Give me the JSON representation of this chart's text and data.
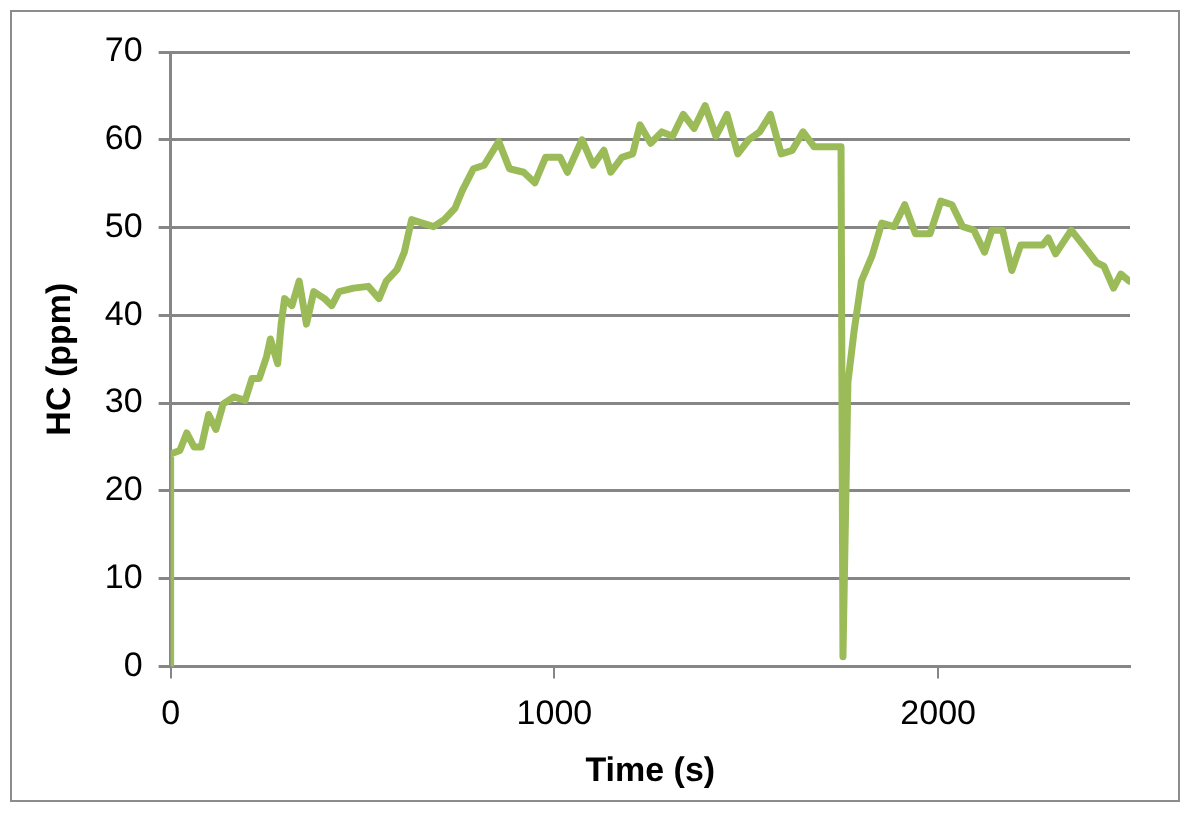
{
  "chart_data": {
    "type": "line",
    "xlabel": "Time (s)",
    "ylabel": "HC (ppm)",
    "xlim": [
      0,
      2500
    ],
    "xticks": [
      0,
      1000,
      2000
    ],
    "ylim": [
      0,
      70
    ],
    "yticks": [
      0,
      10,
      20,
      30,
      40,
      50,
      60,
      70
    ],
    "grid": "y",
    "legend": false,
    "marker": "none",
    "line_style": "solid",
    "x": [
      0,
      0,
      24,
      42,
      61,
      80,
      99,
      118,
      137,
      165,
      194,
      212,
      231,
      250,
      260,
      279,
      288,
      297,
      316,
      335,
      354,
      373,
      401,
      420,
      439,
      477,
      515,
      543,
      562,
      590,
      609,
      628,
      656,
      685,
      713,
      741,
      760,
      789,
      817,
      855,
      883,
      920,
      949,
      977,
      1015,
      1034,
      1072,
      1101,
      1129,
      1147,
      1176,
      1204,
      1223,
      1251,
      1280,
      1308,
      1336,
      1364,
      1393,
      1421,
      1450,
      1478,
      1506,
      1535,
      1563,
      1591,
      1620,
      1648,
      1677,
      1747,
      1752,
      1765,
      1781,
      1800,
      1828,
      1853,
      1885,
      1913,
      1941,
      1979,
      2007,
      2036,
      2064,
      2093,
      2121,
      2140,
      2168,
      2192,
      2215,
      2272,
      2287,
      2306,
      2347,
      2385,
      2413,
      2432,
      2457,
      2476,
      2498
    ],
    "series": [
      {
        "color": "#9bbb59",
        "values": [
          0,
          24.2,
          24.6,
          26.6,
          25,
          25,
          28.7,
          27,
          29.9,
          30.7,
          30.3,
          32.8,
          32.8,
          35.3,
          37.3,
          34.5,
          39,
          41.9,
          41.1,
          43.9,
          39,
          42.7,
          41.9,
          41.1,
          42.7,
          43.1,
          43.3,
          41.9,
          43.9,
          45.2,
          47.2,
          50.9,
          50.5,
          50.1,
          50.9,
          52.2,
          54.2,
          56.7,
          57.1,
          59.8,
          56.7,
          56.3,
          55.1,
          58,
          58,
          56.3,
          60,
          57.1,
          58.8,
          56.3,
          58,
          58.4,
          61.7,
          59.6,
          60.9,
          60.4,
          62.9,
          61.3,
          63.9,
          60.4,
          62.9,
          58.4,
          60,
          60.9,
          62.9,
          58.4,
          58.8,
          60.9,
          59.2,
          59.2,
          1.1,
          32.4,
          38.2,
          43.9,
          46.8,
          50.5,
          50.1,
          52.6,
          49.3,
          49.3,
          53,
          52.6,
          50.1,
          49.7,
          47.2,
          49.7,
          49.7,
          45.1,
          48,
          48,
          48.8,
          47,
          49.7,
          47.6,
          46,
          45.6,
          43.1,
          44.7,
          43.9
        ]
      }
    ]
  }
}
